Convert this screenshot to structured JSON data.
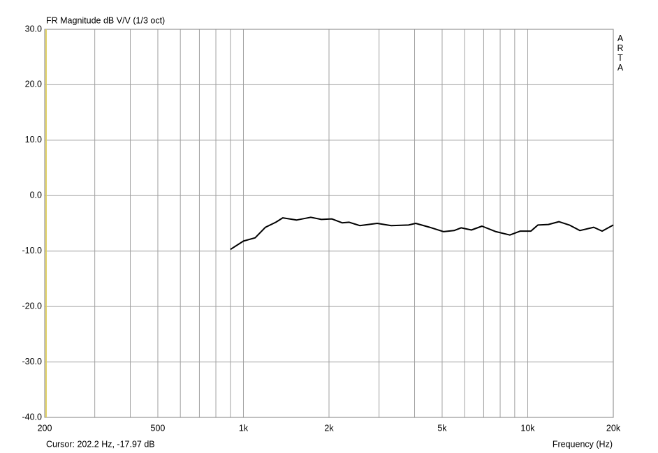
{
  "chart_data": {
    "type": "line",
    "title": "FR Magnitude dB V/V (1/3 oct)",
    "brand": "ARTA",
    "xlabel": "Frequency (Hz)",
    "cursor_label": "Cursor: 202.2 Hz, -17.97 dB",
    "cursor_x": 202.2,
    "cursor_color": "#e0d060",
    "xscale": "log",
    "grid": true,
    "xlim": [
      200,
      20000
    ],
    "ylim": [
      -40,
      30
    ],
    "xticks": [
      200,
      500,
      {
        "value": 1000,
        "label": "1k"
      },
      {
        "value": 2000,
        "label": "2k"
      },
      {
        "value": 5000,
        "label": "5k"
      },
      {
        "value": 10000,
        "label": "10k"
      },
      {
        "value": 20000,
        "label": "20k"
      }
    ],
    "xminor": [
      300,
      400,
      600,
      700,
      800,
      900,
      3000,
      4000,
      6000,
      7000,
      8000,
      9000
    ],
    "yticks": [
      {
        "value": -40,
        "label": "-40.0"
      },
      {
        "value": -30,
        "label": "-30.0"
      },
      {
        "value": -20,
        "label": "-20.0"
      },
      {
        "value": -10,
        "label": "-10.0"
      },
      {
        "value": 0,
        "label": "0.0"
      },
      {
        "value": 10,
        "label": "10.0"
      },
      {
        "value": 20,
        "label": "20.0"
      },
      {
        "value": 30,
        "label": "30.0"
      }
    ],
    "series": [
      {
        "color": "#000000",
        "x": [
          900,
          1000,
          1100,
          1195,
          1300,
          1375,
          1540,
          1725,
          1880,
          2045,
          2225,
          2355,
          2565,
          2955,
          3310,
          3810,
          4035,
          4520,
          5060,
          5510,
          5830,
          6340,
          6905,
          7730,
          8655,
          9420,
          10260,
          10860,
          11825,
          12870,
          14010,
          15250,
          17070,
          18270,
          20000
        ],
        "values": [
          -9.7,
          -8.2,
          -7.6,
          -5.7,
          -4.8,
          -4.0,
          -4.4,
          -3.9,
          -4.3,
          -4.2,
          -4.9,
          -4.8,
          -5.4,
          -5.0,
          -5.4,
          -5.3,
          -5.0,
          -5.7,
          -6.5,
          -6.3,
          -5.8,
          -6.2,
          -5.5,
          -6.5,
          -7.1,
          -6.4,
          -6.4,
          -5.3,
          -5.2,
          -4.7,
          -5.3,
          -6.3,
          -5.7,
          -6.4,
          -5.3
        ]
      }
    ]
  }
}
